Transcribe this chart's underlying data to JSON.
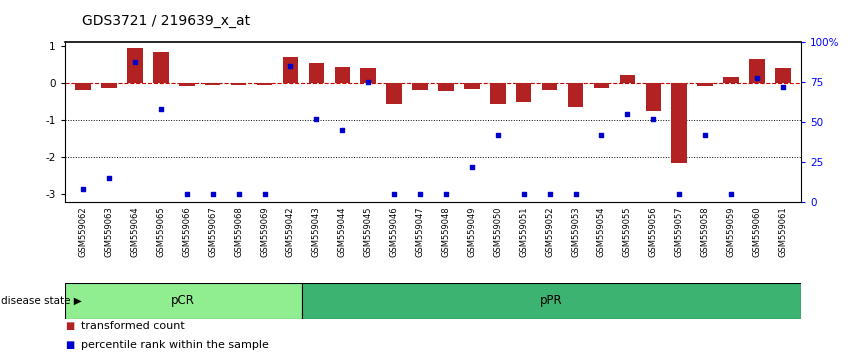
{
  "title": "GDS3721 / 219639_x_at",
  "samples": [
    "GSM559062",
    "GSM559063",
    "GSM559064",
    "GSM559065",
    "GSM559066",
    "GSM559067",
    "GSM559068",
    "GSM559069",
    "GSM559042",
    "GSM559043",
    "GSM559044",
    "GSM559045",
    "GSM559046",
    "GSM559047",
    "GSM559048",
    "GSM559049",
    "GSM559050",
    "GSM559051",
    "GSM559052",
    "GSM559053",
    "GSM559054",
    "GSM559055",
    "GSM559056",
    "GSM559057",
    "GSM559058",
    "GSM559059",
    "GSM559060",
    "GSM559061"
  ],
  "red_bars": [
    -0.18,
    -0.12,
    0.95,
    0.85,
    -0.08,
    -0.05,
    -0.05,
    -0.05,
    0.72,
    0.55,
    0.45,
    0.4,
    -0.55,
    -0.18,
    -0.22,
    -0.15,
    -0.55,
    -0.5,
    -0.18,
    -0.65,
    -0.12,
    0.22,
    -0.75,
    -2.15,
    -0.08,
    0.18,
    0.65,
    0.42
  ],
  "blue_pct": [
    8,
    15,
    88,
    58,
    5,
    5,
    5,
    5,
    85,
    52,
    45,
    75,
    5,
    5,
    5,
    22,
    42,
    5,
    5,
    5,
    42,
    55,
    52,
    5,
    42,
    5,
    78,
    72
  ],
  "pCR_count": 9,
  "total_count": 28,
  "bar_color": "#B22222",
  "scatter_color": "#0000CD",
  "ylim_left": [
    -3.2,
    1.1
  ],
  "ylim_right": [
    0,
    100
  ],
  "yticks_left": [
    -3,
    -2,
    -1,
    0,
    1
  ],
  "yticks_right": [
    0,
    25,
    50,
    75,
    100
  ],
  "ytick_right_labels": [
    "0",
    "25",
    "50",
    "75",
    "100%"
  ],
  "hline_color": "#CC0000",
  "dotted_line_color": "black",
  "pcr_color": "#90EE90",
  "ppr_color": "#3CB371",
  "title_fontsize": 10,
  "tick_fontsize": 7.5,
  "legend_fontsize": 8,
  "xtick_fontsize": 6.0
}
